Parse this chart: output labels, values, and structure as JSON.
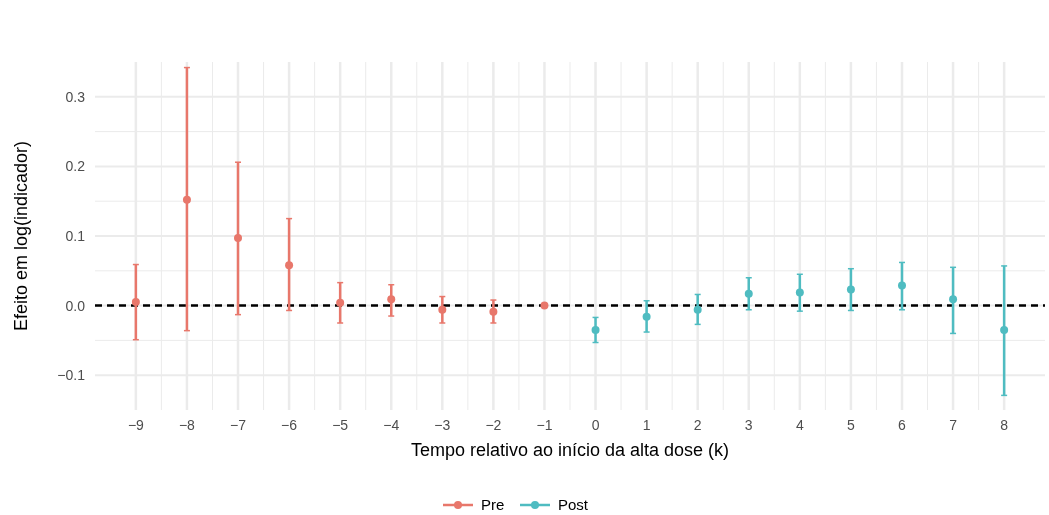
{
  "chart_data": {
    "type": "scatter",
    "xlabel": "Tempo relativo ao início da alta dose (k)",
    "ylabel": "Efeito em log(indicador)",
    "xlim": [
      -9.8,
      8.8
    ],
    "ylim": [
      -0.15,
      0.35
    ],
    "xticks": [
      {
        "value": -9,
        "label": "−9"
      },
      {
        "value": -8,
        "label": "−8"
      },
      {
        "value": -7,
        "label": "−7"
      },
      {
        "value": -6,
        "label": "−6"
      },
      {
        "value": -5,
        "label": "−5"
      },
      {
        "value": -4,
        "label": "−4"
      },
      {
        "value": -3,
        "label": "−3"
      },
      {
        "value": -2,
        "label": "−2"
      },
      {
        "value": -1,
        "label": "−1"
      },
      0,
      1,
      2,
      3,
      4,
      5,
      6,
      7,
      8
    ],
    "yticks": [
      {
        "value": -0.1,
        "label": "−0.1"
      },
      {
        "value": 0,
        "label": "0.0"
      },
      0.1,
      0.2,
      0.3
    ],
    "grid": true,
    "legend": "bottom",
    "marker": "circle",
    "ref_lines": [
      {
        "axis": "y",
        "value": 0,
        "color": "#000000",
        "line_style": "dashed"
      }
    ],
    "series": [
      {
        "name": "Pre",
        "color": "#e8776b",
        "x": [
          -9,
          -8,
          -7,
          -6,
          -5,
          -4,
          -3,
          -2,
          -1
        ],
        "values": [
          0.005,
          0.152,
          0.097,
          0.058,
          0.004,
          0.009,
          -0.006,
          -0.009,
          0
        ],
        "errors": [
          [
            -0.049,
            0.059
          ],
          [
            -0.036,
            0.342
          ],
          [
            -0.013,
            0.206
          ],
          [
            -0.007,
            0.125
          ],
          [
            -0.025,
            0.033
          ],
          [
            -0.015,
            0.03
          ],
          [
            -0.025,
            0.013
          ],
          [
            -0.025,
            0.008
          ],
          null
        ]
      },
      {
        "name": "Post",
        "color": "#4fbcc1",
        "x": [
          0,
          1,
          2,
          3,
          4,
          5,
          6,
          7,
          8
        ],
        "values": [
          -0.035,
          -0.016,
          -0.006,
          0.017,
          0.019,
          0.023,
          0.029,
          0.009,
          -0.035
        ],
        "errors": [
          [
            -0.053,
            -0.017
          ],
          [
            -0.038,
            0.007
          ],
          [
            -0.027,
            0.016
          ],
          [
            -0.006,
            0.04
          ],
          [
            -0.008,
            0.045
          ],
          [
            -0.007,
            0.053
          ],
          [
            -0.006,
            0.062
          ],
          [
            -0.04,
            0.055
          ],
          [
            -0.129,
            0.057
          ]
        ]
      }
    ]
  }
}
